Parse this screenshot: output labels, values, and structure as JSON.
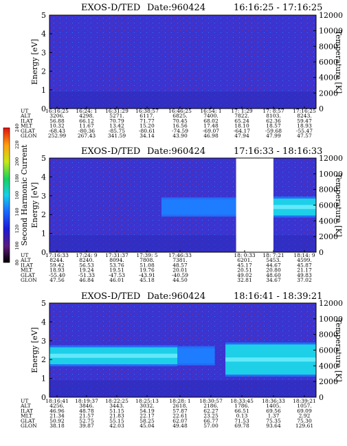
{
  "colors": {
    "background": "#3a34d0",
    "cold": "#2a2ab8",
    "mid": "#1e7cff",
    "band": "#1ecfe8",
    "peak": "#7af2ff",
    "gap": "#ffffff",
    "speckle": "#c02070"
  },
  "colorbar": {
    "label": "Second Harmonic Current",
    "ticks": [
      "80",
      "100",
      "120",
      "140",
      "160",
      "180",
      "200",
      "220",
      "240"
    ],
    "ylim": [
      80,
      240
    ]
  },
  "panels": [
    {
      "title_name": "EXOS-D/TED",
      "title_date": "Date:960424",
      "title_range": "16:16:25 - 17:16:25",
      "ylabel": "Energy [eV]",
      "y2label": "Temperature [K]",
      "yticks": [
        "0",
        "1",
        "2",
        "3",
        "4",
        "5"
      ],
      "y2ticks": [
        "0",
        "2000",
        "4000",
        "6000",
        "8000",
        "10000",
        "12000"
      ],
      "table_labels": [
        "UT",
        "ALT",
        "ILAT",
        "MLT",
        "GLAT",
        "GLON"
      ],
      "columns": [
        [
          "16:16:25",
          "3206.",
          "56.88",
          "10.32",
          "-68.43",
          "252.99"
        ],
        [
          "16:24: 1",
          "4298.",
          "66.12",
          "11.67",
          "-80.36",
          "267.43"
        ],
        [
          "16:31:29",
          "5271.",
          "70.79",
          "13.42",
          "-85.75",
          "341.59"
        ],
        [
          "16:38:57",
          "6117.",
          "71.77",
          "15.20",
          "-80.61",
          "34.14"
        ],
        [
          "16:46:25",
          "6825.",
          "70.45",
          "16.56",
          "-74.59",
          "43.90"
        ],
        [
          "16:54: 1",
          "7400.",
          "68.02",
          "17.48",
          "-69.07",
          "46.98"
        ],
        [
          "17: 1:29",
          "7822.",
          "65.24",
          "18.10",
          "-64.17",
          "47.94"
        ],
        [
          "17: 8:57",
          "8103.",
          "62.36",
          "18.57",
          "-59.68",
          "47.99"
        ],
        [
          "17:16:25",
          "8243.",
          "59.47",
          "18.93",
          "-55.47",
          "47.57"
        ]
      ]
    },
    {
      "title_name": "EXOS-D/TED",
      "title_date": "Date:960424",
      "title_range": "17:16:33 - 18:16:33",
      "ylabel": "Energy [eV]",
      "y2label": "Temperature [K]",
      "yticks": [
        "0",
        "1",
        "2",
        "3",
        "4",
        "5"
      ],
      "y2ticks": [
        "0",
        "2000",
        "4000",
        "6000",
        "8000",
        "10000",
        "12000"
      ],
      "table_labels": [
        "UT",
        "ALT",
        "ILAT",
        "MLT",
        "GLAT",
        "GLON"
      ],
      "columns": [
        [
          "17:16:33",
          "8244.",
          "59.42",
          "18.93",
          "-55.40",
          "47.56"
        ],
        [
          "17:24: 9",
          "8240.",
          "56.53",
          "19.24",
          "-51.33",
          "46.84"
        ],
        [
          "17:31:37",
          "8094.",
          "53.76",
          "19.51",
          "-47.53",
          "46.01"
        ],
        [
          "17:39: 5",
          "7808.",
          "51.08",
          "19.76",
          "-43.91",
          "45.18"
        ],
        [
          "17:46:33",
          "7381.",
          "48.57",
          "20.01",
          "-40.59",
          "44.50"
        ],
        [
          "18: 0:33",
          "6201.",
          "45.17",
          "20.51",
          "49.02",
          "32.81"
        ],
        [
          "18: 7:21",
          "5453.",
          "44.67",
          "20.80",
          "48.60",
          "34.67"
        ],
        [
          "18:14: 9",
          "4599.",
          "45.87",
          "21.17",
          "49.83",
          "37.02"
        ]
      ]
    },
    {
      "title_name": "EXOS-D/TED",
      "title_date": "Date:960424",
      "title_range": "18:16:41 - 18:39:21",
      "ylabel": "Energy [eV]",
      "y2label": "Temperature [K]",
      "yticks": [
        "0",
        "1",
        "2",
        "3",
        "4",
        "5"
      ],
      "y2ticks": [
        "0",
        "2000",
        "4000",
        "6000",
        "8000",
        "10000",
        "12000"
      ],
      "table_labels": [
        "UT",
        "ALT",
        "ILAT",
        "MLT",
        "GLAT",
        "GLON"
      ],
      "columns": [
        [
          "18:16:41",
          "4256.",
          "46.96",
          "21.34",
          "50.92",
          "38.18"
        ],
        [
          "18:19:37",
          "3846.",
          "48.78",
          "21.57",
          "52.75",
          "39.87"
        ],
        [
          "18:22:25",
          "3443.",
          "51.15",
          "21.83",
          "55.15",
          "42.03"
        ],
        [
          "18:25:13",
          "3032.",
          "54.19",
          "22.17",
          "58.25",
          "45.04"
        ],
        [
          "18:28: 1",
          "2618.",
          "57.87",
          "22.61",
          "62.07",
          "49.48"
        ],
        [
          "18:30:57",
          "2186.",
          "62.27",
          "23.25",
          "66.77",
          "57.00"
        ],
        [
          "18:33:45",
          "1786.",
          "66.51",
          "0.13",
          "71.53",
          "69.78"
        ],
        [
          "18:36:33",
          "1405.",
          "69.56",
          "1.37",
          "75.35",
          "93.64"
        ],
        [
          "18:39:21",
          "1057.",
          "69.09",
          "2.92",
          "75.30",
          "129.61"
        ]
      ]
    }
  ],
  "chart_data": [
    {
      "type": "heatmap",
      "title": "EXOS-D/TED  Date:960424  16:16:25 - 17:16:25",
      "xlabel": "UT",
      "ylabel": "Energy [eV]",
      "y2label": "Temperature [K]",
      "ylim": [
        0,
        5
      ],
      "y2lim": [
        0,
        12000
      ],
      "x_ticks": [
        "16:16:25",
        "16:24: 1",
        "16:31:29",
        "16:38:57",
        "16:46:25",
        "16:54: 1",
        "17: 1:29",
        "17: 8:57",
        "17:16:25"
      ],
      "description_band": "none",
      "band_segments": [],
      "gaps": []
    },
    {
      "type": "heatmap",
      "title": "EXOS-D/TED  Date:960424  17:16:33 - 18:16:33",
      "xlabel": "UT",
      "ylabel": "Energy [eV]",
      "y2label": "Temperature [K]",
      "ylim": [
        0,
        5
      ],
      "y2lim": [
        0,
        12000
      ],
      "x_ticks": [
        "17:16:33",
        "17:24: 9",
        "17:31:37",
        "17:39: 5",
        "17:46:33",
        "18: 0:33",
        "18: 7:21",
        "18:14: 9"
      ],
      "band_segments": [
        {
          "from": 0.42,
          "to": 0.7,
          "center_eV": 2.4,
          "width_eV": 0.8,
          "intensity": "mid"
        },
        {
          "from": 0.84,
          "to": 1.0,
          "center_eV": 2.4,
          "width_eV": 0.9,
          "intensity": "high"
        }
      ],
      "gaps": [
        {
          "from": 0.7,
          "to": 0.84
        }
      ]
    },
    {
      "type": "heatmap",
      "title": "EXOS-D/TED  Date:960424  18:16:41 - 18:39:21",
      "xlabel": "UT",
      "ylabel": "Energy [eV]",
      "y2label": "Temperature [K]",
      "ylim": [
        0,
        5
      ],
      "y2lim": [
        0,
        12000
      ],
      "x_ticks": [
        "18:16:41",
        "18:19:37",
        "18:22:25",
        "18:25:13",
        "18:28: 1",
        "18:30:57",
        "18:33:45",
        "18:36:33",
        "18:39:21"
      ],
      "band_segments": [
        {
          "from": 0.0,
          "to": 0.48,
          "center_eV": 2.2,
          "width_eV": 0.9,
          "intensity": "high"
        },
        {
          "from": 0.48,
          "to": 0.62,
          "center_eV": 2.2,
          "width_eV": 0.8,
          "intensity": "mid"
        },
        {
          "from": 0.66,
          "to": 1.0,
          "center_eV": 2.0,
          "width_eV": 1.6,
          "intensity": "high"
        }
      ],
      "gaps": []
    }
  ]
}
